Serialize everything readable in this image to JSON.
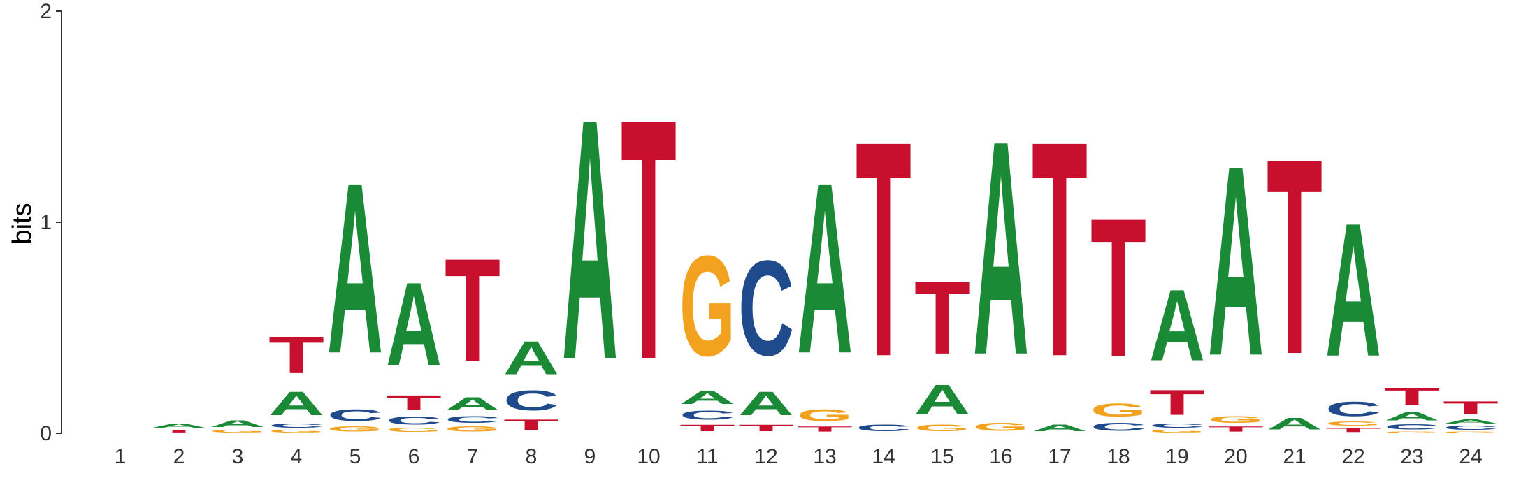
{
  "chart_data": {
    "type": "sequence-logo",
    "ylabel": "bits",
    "ylim": [
      0,
      2
    ],
    "yticks": [
      "0",
      "1",
      "2"
    ],
    "grid": false,
    "colors": {
      "A": "#1b8a36",
      "C": "#1f4a8c",
      "G": "#f2a21e",
      "T": "#c8102e"
    },
    "positions": [
      {
        "pos": "1",
        "letters": []
      },
      {
        "pos": "2",
        "letters": [
          {
            "base": "T",
            "bits": 0.02
          },
          {
            "base": "A",
            "bits": 0.03
          }
        ]
      },
      {
        "pos": "3",
        "letters": [
          {
            "base": "G",
            "bits": 0.02
          },
          {
            "base": "A",
            "bits": 0.05
          }
        ]
      },
      {
        "pos": "4",
        "letters": [
          {
            "base": "G",
            "bits": 0.02
          },
          {
            "base": "C",
            "bits": 0.03
          },
          {
            "base": "A",
            "bits": 0.18
          },
          {
            "base": "T",
            "bits": 0.28
          }
        ]
      },
      {
        "pos": "5",
        "letters": [
          {
            "base": "G",
            "bits": 0.04
          },
          {
            "base": "C",
            "bits": 0.09
          },
          {
            "base": "A",
            "bits": 1.29
          }
        ]
      },
      {
        "pos": "6",
        "letters": [
          {
            "base": "G",
            "bits": 0.03
          },
          {
            "base": "C",
            "bits": 0.06
          },
          {
            "base": "T",
            "bits": 0.11
          },
          {
            "base": "A",
            "bits": 0.63
          }
        ]
      },
      {
        "pos": "7",
        "letters": [
          {
            "base": "G",
            "bits": 0.04
          },
          {
            "base": "C",
            "bits": 0.05
          },
          {
            "base": "A",
            "bits": 0.1
          },
          {
            "base": "T",
            "bits": 0.78
          }
        ]
      },
      {
        "pos": "8",
        "letters": [
          {
            "base": "T",
            "bits": 0.08
          },
          {
            "base": "C",
            "bits": 0.15
          },
          {
            "base": "A",
            "bits": 0.25
          }
        ]
      },
      {
        "pos": "9",
        "letters": [
          {
            "base": "A",
            "bits": 1.82
          }
        ]
      },
      {
        "pos": "10",
        "letters": [
          {
            "base": "T",
            "bits": 1.82
          }
        ]
      },
      {
        "pos": "11",
        "letters": [
          {
            "base": "T",
            "bits": 0.05
          },
          {
            "base": "C",
            "bits": 0.07
          },
          {
            "base": "A",
            "bits": 0.1
          },
          {
            "base": "G",
            "bits": 0.76
          }
        ]
      },
      {
        "pos": "12",
        "letters": [
          {
            "base": "T",
            "bits": 0.05
          },
          {
            "base": "A",
            "bits": 0.18
          },
          {
            "base": "C",
            "bits": 0.72
          }
        ]
      },
      {
        "pos": "13",
        "letters": [
          {
            "base": "T",
            "bits": 0.04
          },
          {
            "base": "G",
            "bits": 0.09
          },
          {
            "base": "A",
            "bits": 1.29
          }
        ]
      },
      {
        "pos": "14",
        "letters": [
          {
            "base": "C",
            "bits": 0.05
          },
          {
            "base": "T",
            "bits": 1.63
          }
        ]
      },
      {
        "pos": "15",
        "letters": [
          {
            "base": "G",
            "bits": 0.05
          },
          {
            "base": "A",
            "bits": 0.22
          },
          {
            "base": "T",
            "bits": 0.55
          }
        ]
      },
      {
        "pos": "16",
        "letters": [
          {
            "base": "G",
            "bits": 0.06
          },
          {
            "base": "A",
            "bits": 1.62
          }
        ]
      },
      {
        "pos": "17",
        "letters": [
          {
            "base": "A",
            "bits": 0.05
          },
          {
            "base": "T",
            "bits": 1.63
          }
        ]
      },
      {
        "pos": "18",
        "letters": [
          {
            "base": "C",
            "bits": 0.06
          },
          {
            "base": "G",
            "bits": 0.1
          },
          {
            "base": "T",
            "bits": 1.05
          }
        ]
      },
      {
        "pos": "19",
        "letters": [
          {
            "base": "G",
            "bits": 0.02
          },
          {
            "base": "C",
            "bits": 0.03
          },
          {
            "base": "T",
            "bits": 0.19
          },
          {
            "base": "A",
            "bits": 0.54
          }
        ]
      },
      {
        "pos": "20",
        "letters": [
          {
            "base": "T",
            "bits": 0.04
          },
          {
            "base": "G",
            "bits": 0.05
          },
          {
            "base": "A",
            "bits": 1.44
          }
        ]
      },
      {
        "pos": "21",
        "letters": [
          {
            "base": "A",
            "bits": 0.09
          },
          {
            "base": "T",
            "bits": 1.48
          }
        ]
      },
      {
        "pos": "22",
        "letters": [
          {
            "base": "T",
            "bits": 0.03
          },
          {
            "base": "G",
            "bits": 0.03
          },
          {
            "base": "C",
            "bits": 0.11
          },
          {
            "base": "A",
            "bits": 1.01
          }
        ]
      },
      {
        "pos": "23",
        "letters": [
          {
            "base": "G",
            "bits": 0.01
          },
          {
            "base": "C",
            "bits": 0.04
          },
          {
            "base": "A",
            "bits": 0.06
          },
          {
            "base": "T",
            "bits": 0.13
          }
        ]
      },
      {
        "pos": "24",
        "letters": [
          {
            "base": "G",
            "bits": 0.01
          },
          {
            "base": "C",
            "bits": 0.03
          },
          {
            "base": "A",
            "bits": 0.03
          },
          {
            "base": "T",
            "bits": 0.1
          }
        ]
      }
    ]
  }
}
